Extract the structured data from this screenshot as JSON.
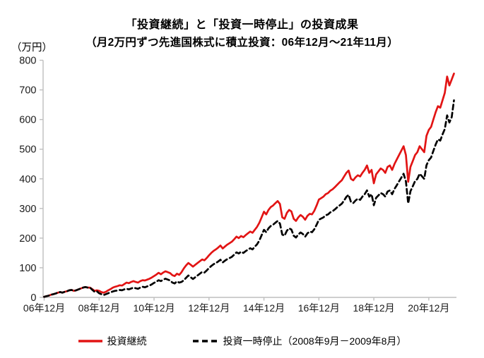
{
  "chart_data": {
    "type": "line",
    "title": "「投資継続」と「投資一時停止」の投資成果",
    "subtitle": "（月2万円ずつ先進国株式に積立投資：06年12月～21年11月）",
    "ylabel": "（万円）",
    "ylim": [
      0,
      800
    ],
    "y_ticks": [
      0,
      100,
      200,
      300,
      400,
      500,
      600,
      700,
      800
    ],
    "x_start": "06年12月",
    "x_end": "21年11月",
    "x_tick_labels": [
      "06年12月",
      "08年12月",
      "10年12月",
      "12年12月",
      "14年12月",
      "16年12月",
      "18年12月",
      "20年12月"
    ],
    "x_tick_months": [
      0,
      24,
      48,
      72,
      96,
      120,
      144,
      168
    ],
    "grid": false,
    "legend_position": "bottom",
    "axis_color": "#bfbfbf",
    "label_color": "#1a1a1a",
    "series": [
      {
        "name": "投資継続",
        "style": "solid",
        "color": "#e21414",
        "values": [
          2,
          4,
          6,
          9,
          11,
          13,
          16,
          18,
          16,
          19,
          21,
          24,
          25,
          22,
          24,
          27,
          30,
          33,
          35,
          33,
          33,
          28,
          22,
          24,
          22,
          18,
          16,
          19,
          24,
          28,
          33,
          36,
          38,
          41,
          40,
          45,
          50,
          48,
          52,
          55,
          52,
          50,
          55,
          58,
          57,
          60,
          63,
          67,
          72,
          77,
          83,
          78,
          84,
          88,
          85,
          82,
          75,
          72,
          80,
          76,
          85,
          98,
          108,
          116,
          110,
          104,
          110,
          116,
          122,
          128,
          125,
          133,
          142,
          150,
          157,
          162,
          168,
          175,
          165,
          172,
          178,
          183,
          188,
          196,
          205,
          200,
          207,
          203,
          210,
          216,
          222,
          218,
          228,
          238,
          252,
          270,
          289,
          280,
          295,
          305,
          310,
          318,
          325,
          315,
          270,
          265,
          285,
          295,
          290,
          265,
          258,
          270,
          278,
          272,
          262,
          275,
          282,
          280,
          292,
          310,
          330,
          335,
          340,
          348,
          352,
          360,
          365,
          372,
          380,
          388,
          395,
          408,
          420,
          428,
          400,
          395,
          405,
          412,
          408,
          420,
          430,
          445,
          420,
          430,
          385,
          415,
          425,
          435,
          430,
          420,
          440,
          445,
          430,
          450,
          465,
          480,
          495,
          510,
          480,
          390,
          440,
          460,
          480,
          490,
          510,
          500,
          490,
          545,
          565,
          575,
          600,
          625,
          645,
          640,
          665,
          690,
          745,
          715,
          735,
          755
        ]
      },
      {
        "name": "投資一時停止（2008年9月－2009年8月）",
        "style": "dashed",
        "color": "#000000",
        "values": [
          2,
          4,
          6,
          9,
          11,
          13,
          16,
          18,
          16,
          19,
          21,
          24,
          25,
          22,
          24,
          27,
          30,
          33,
          35,
          33,
          33,
          26,
          19,
          21,
          14,
          11,
          8,
          11,
          14,
          17,
          20,
          22,
          23,
          25,
          24,
          27,
          29,
          27,
          30,
          33,
          31,
          29,
          33,
          36,
          34,
          37,
          40,
          44,
          49,
          53,
          58,
          55,
          60,
          63,
          60,
          57,
          50,
          47,
          54,
          50,
          52,
          58,
          66,
          74,
          68,
          62,
          68,
          74,
          80,
          86,
          84,
          91,
          99,
          106,
          112,
          116,
          121,
          127,
          118,
          124,
          129,
          133,
          137,
          144,
          152,
          148,
          154,
          150,
          156,
          161,
          166,
          162,
          171,
          179,
          192,
          210,
          228,
          220,
          233,
          241,
          245,
          252,
          258,
          249,
          212,
          208,
          225,
          233,
          229,
          208,
          202,
          212,
          219,
          214,
          205,
          216,
          222,
          220,
          230,
          245,
          262,
          266,
          270,
          277,
          280,
          287,
          291,
          297,
          304,
          310,
          316,
          327,
          339,
          346,
          322,
          318,
          327,
          333,
          329,
          340,
          348,
          361,
          340,
          348,
          311,
          336,
          344,
          352,
          348,
          340,
          357,
          361,
          348,
          366,
          378,
          391,
          404,
          417,
          391,
          317,
          358,
          375,
          392,
          400,
          417,
          409,
          400,
          446,
          463,
          472,
          494,
          516,
          533,
          529,
          550,
          568,
          614,
          590,
          608,
          665
        ]
      }
    ]
  }
}
